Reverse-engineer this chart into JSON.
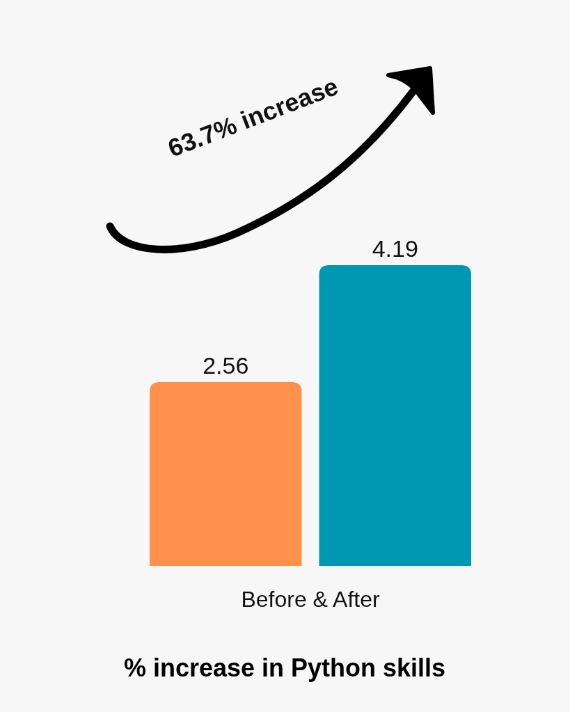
{
  "chart_data": {
    "type": "bar",
    "title": "% increase in Python skills",
    "xlabel": "Before & After",
    "categories": [
      null,
      null
    ],
    "values": [
      2.56,
      4.19
    ],
    "colors": [
      "#ff914d",
      "#0097b2"
    ],
    "data_labels": true,
    "annotations": [
      "63.7% increase"
    ]
  }
}
